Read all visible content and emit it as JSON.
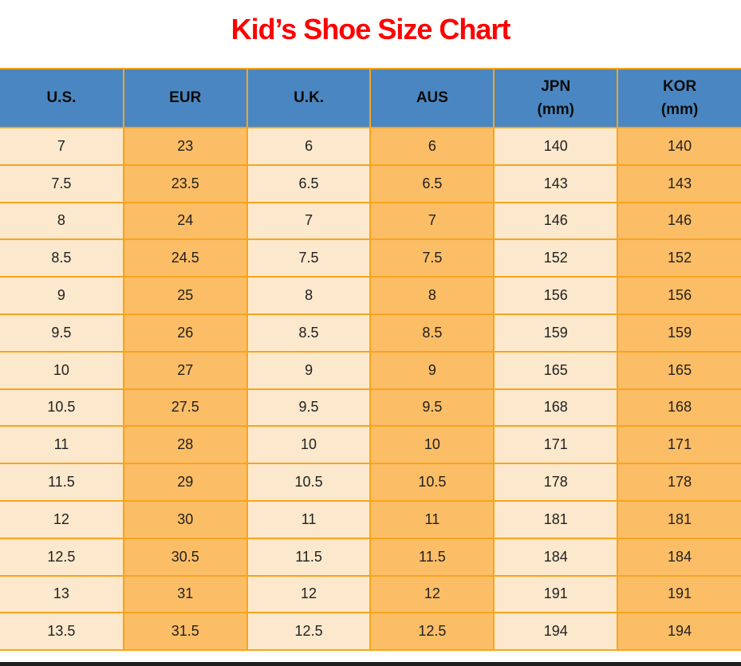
{
  "page": {
    "title": "Kid’s Shoe Size Chart"
  },
  "colors": {
    "title": "#FF0000",
    "header_bg": "#4A87C2",
    "header_text": "#0B0B0B",
    "grid": "#F8A41C",
    "col_light": "#FCE8CC",
    "col_orange": "#FBBD66",
    "cell_text": "#212121",
    "bottom_bar": "#1E1E1E"
  },
  "chart_data": {
    "type": "table",
    "title": "Kid’s Shoe Size Chart",
    "columns": [
      {
        "label": "U.S.",
        "sub": ""
      },
      {
        "label": "EUR",
        "sub": ""
      },
      {
        "label": "U.K.",
        "sub": ""
      },
      {
        "label": "AUS",
        "sub": ""
      },
      {
        "label": "JPN",
        "sub": "(mm)"
      },
      {
        "label": "KOR",
        "sub": "(mm)"
      }
    ],
    "rows": [
      [
        "7",
        "23",
        "6",
        "6",
        "140",
        "140"
      ],
      [
        "7.5",
        "23.5",
        "6.5",
        "6.5",
        "143",
        "143"
      ],
      [
        "8",
        "24",
        "7",
        "7",
        "146",
        "146"
      ],
      [
        "8.5",
        "24.5",
        "7.5",
        "7.5",
        "152",
        "152"
      ],
      [
        "9",
        "25",
        "8",
        "8",
        "156",
        "156"
      ],
      [
        "9.5",
        "26",
        "8.5",
        "8.5",
        "159",
        "159"
      ],
      [
        "10",
        "27",
        "9",
        "9",
        "165",
        "165"
      ],
      [
        "10.5",
        "27.5",
        "9.5",
        "9.5",
        "168",
        "168"
      ],
      [
        "11",
        "28",
        "10",
        "10",
        "171",
        "171"
      ],
      [
        "11.5",
        "29",
        "10.5",
        "10.5",
        "178",
        "178"
      ],
      [
        "12",
        "30",
        "11",
        "11",
        "181",
        "181"
      ],
      [
        "12.5",
        "30.5",
        "11.5",
        "11.5",
        "184",
        "184"
      ],
      [
        "13",
        "31",
        "12",
        "12",
        "191",
        "191"
      ],
      [
        "13.5",
        "31.5",
        "12.5",
        "12.5",
        "194",
        "194"
      ]
    ]
  }
}
